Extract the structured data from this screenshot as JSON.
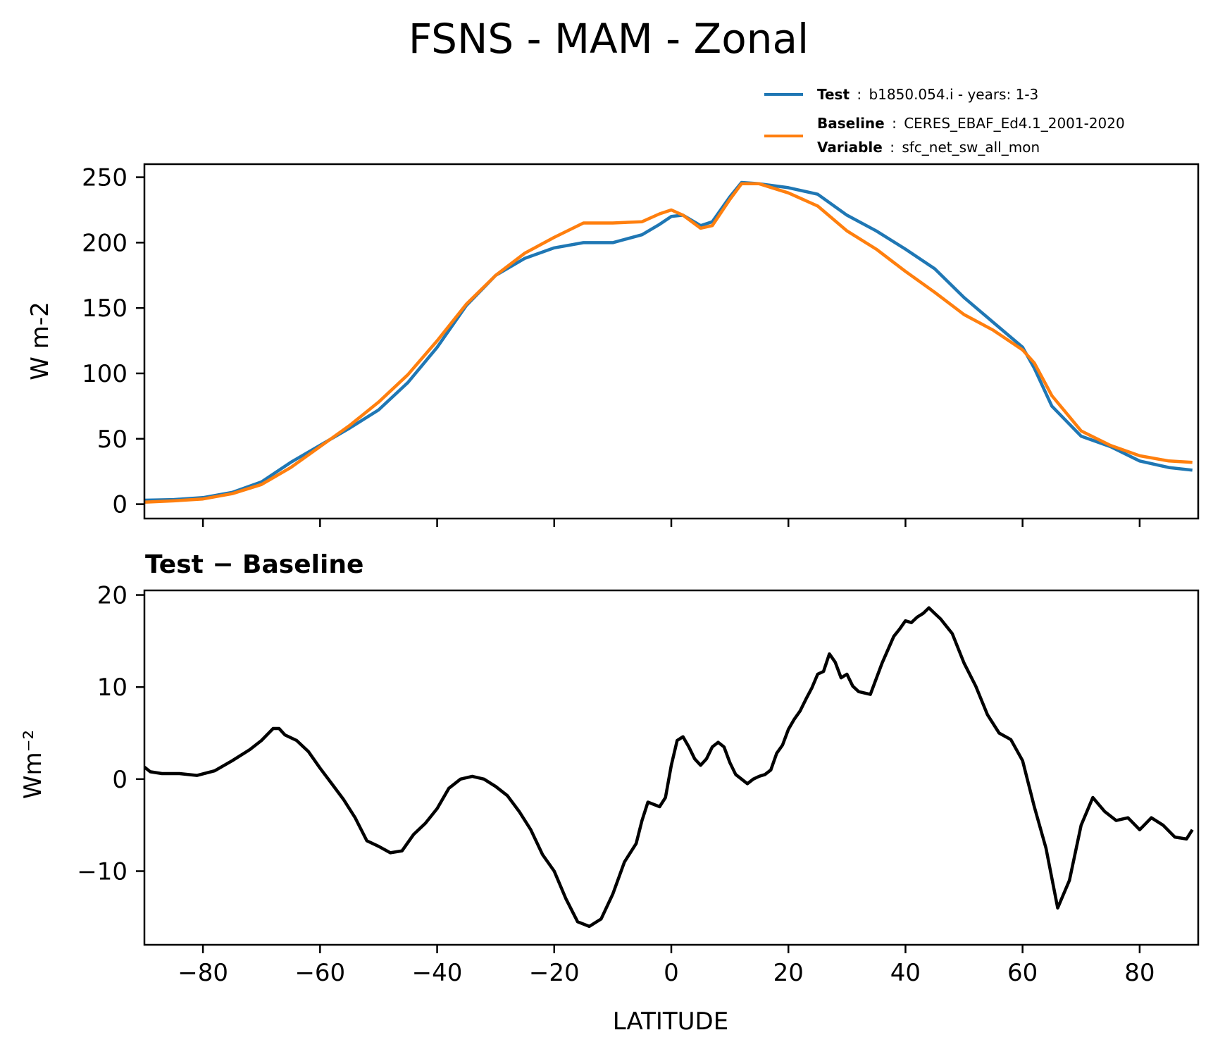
{
  "chart_data": [
    {
      "type": "line",
      "title": "FSNS - MAM - Zonal",
      "xlabel": "",
      "ylabel": "W m-2",
      "xlim": [
        -90,
        90
      ],
      "ylim": [
        -11,
        260
      ],
      "xticks": [
        -80,
        -60,
        -40,
        -20,
        0,
        20,
        40,
        60,
        80
      ],
      "yticks": [
        0,
        50,
        100,
        150,
        200,
        250
      ],
      "ytick_labels": [
        "0",
        "50",
        "100",
        "150",
        "200",
        "250"
      ],
      "legend": {
        "placement": "upper-right, above axes",
        "entries": [
          {
            "bold": "Test",
            "sep": ":",
            "text": "b1850.054.i - years: 1-3",
            "color": "#1f77b4"
          },
          {
            "bold": "Baseline",
            "sep": ":",
            "text": "CERES_EBAF_Ed4.1_2001-2020",
            "color": "#ff7f0e",
            "bold2": "Variable",
            "text2": "sfc_net_sw_all_mon"
          }
        ]
      },
      "x": [
        -90,
        -85,
        -80,
        -75,
        -70,
        -65,
        -60,
        -55,
        -50,
        -45,
        -40,
        -35,
        -30,
        -25,
        -20,
        -15,
        -10,
        -5,
        -2,
        0,
        2,
        5,
        7,
        10,
        12,
        15,
        20,
        25,
        30,
        35,
        40,
        45,
        50,
        55,
        60,
        62,
        65,
        70,
        75,
        80,
        85,
        89
      ],
      "series": [
        {
          "name": "Test",
          "color": "#1f77b4",
          "values": [
            3,
            3.5,
            5,
            9,
            17,
            32,
            45,
            58,
            72,
            93,
            120,
            152,
            175,
            188,
            196,
            200,
            200,
            206,
            214,
            220,
            221,
            213,
            216,
            235,
            246,
            245,
            242,
            237,
            221,
            209,
            195,
            180,
            158,
            139,
            120,
            104,
            75,
            52,
            44,
            33,
            28,
            26
          ]
        },
        {
          "name": "Baseline",
          "color": "#ff7f0e",
          "values": [
            1.5,
            2.5,
            4,
            8,
            15,
            28,
            44,
            60,
            78,
            99,
            125,
            153,
            175,
            192,
            204,
            215,
            215,
            216,
            222,
            225,
            221,
            211,
            213,
            233,
            245,
            245,
            238,
            228,
            209,
            195,
            178,
            162,
            145,
            133,
            118,
            108,
            83,
            56,
            45,
            37,
            33,
            32
          ]
        }
      ]
    },
    {
      "type": "line",
      "title": "Test − Baseline",
      "xlabel": "LATITUDE",
      "ylabel": "Wm⁻²",
      "xlim": [
        -90,
        90
      ],
      "ylim": [
        -18,
        20.5
      ],
      "xticks": [
        -80,
        -60,
        -40,
        -20,
        0,
        20,
        40,
        60,
        80
      ],
      "xtick_labels": [
        "−80",
        "−60",
        "−40",
        "−20",
        "0",
        "20",
        "40",
        "60",
        "80"
      ],
      "yticks": [
        -10,
        0,
        10,
        20
      ],
      "ytick_labels": [
        "−10",
        "0",
        "10",
        "20"
      ],
      "x": [
        -90,
        -89,
        -87,
        -84,
        -81,
        -78,
        -75,
        -72,
        -70,
        -68,
        -67,
        -66,
        -64,
        -62,
        -60,
        -58,
        -56,
        -54,
        -52,
        -50,
        -48,
        -46,
        -44,
        -42,
        -40,
        -38,
        -36,
        -34,
        -32,
        -30,
        -28,
        -26,
        -24,
        -22,
        -20,
        -18,
        -16,
        -14,
        -12,
        -10,
        -8,
        -6,
        -5,
        -4,
        -2,
        -1,
        0,
        1,
        2,
        3,
        4,
        5,
        6,
        7,
        8,
        9,
        10,
        11,
        12,
        13,
        14,
        15,
        16,
        17,
        18,
        19,
        20,
        21,
        22,
        23,
        24,
        25,
        26,
        27,
        28,
        29,
        30,
        31,
        32,
        34,
        36,
        38,
        39,
        40,
        41,
        42,
        43,
        44,
        45,
        46,
        48,
        50,
        52,
        54,
        56,
        58,
        60,
        62,
        64,
        66,
        68,
        70,
        72,
        74,
        76,
        78,
        80,
        82,
        84,
        86,
        88,
        89
      ],
      "series": [
        {
          "name": "Test − Baseline",
          "color": "#000000",
          "values": [
            1.3,
            0.8,
            0.6,
            0.6,
            0.4,
            0.9,
            2.0,
            3.2,
            4.2,
            5.5,
            5.5,
            4.8,
            4.2,
            3.0,
            1.2,
            -0.5,
            -2.2,
            -4.2,
            -6.7,
            -7.3,
            -8.0,
            -7.8,
            -6.0,
            -4.8,
            -3.2,
            -1.0,
            0,
            0.3,
            0,
            -0.8,
            -1.8,
            -3.5,
            -5.5,
            -8.2,
            -10,
            -13,
            -15.5,
            -16,
            -15.2,
            -12.5,
            -9,
            -7,
            -4.5,
            -2.5,
            -3,
            -2,
            1.5,
            4.2,
            4.6,
            3.5,
            2.2,
            1.5,
            2.2,
            3.5,
            4,
            3.5,
            1.8,
            0.5,
            0,
            -0.5,
            0,
            0.3,
            0.5,
            1,
            2.8,
            3.7,
            5.4,
            6.5,
            7.4,
            8.7,
            9.9,
            11.4,
            11.7,
            13.6,
            12.7,
            11,
            11.4,
            10.1,
            9.5,
            9.2,
            12.6,
            15.5,
            16.3,
            17.2,
            17,
            17.6,
            18,
            18.6,
            18,
            17.4,
            15.8,
            12.6,
            10.1,
            7,
            5,
            4.3,
            2,
            -3,
            -7.5,
            -14,
            -11,
            -5,
            -2,
            -3.5,
            -4.5,
            -4.2,
            -5.5,
            -4.2,
            -5,
            -6.3,
            -6.5,
            -5.5
          ]
        }
      ]
    }
  ]
}
